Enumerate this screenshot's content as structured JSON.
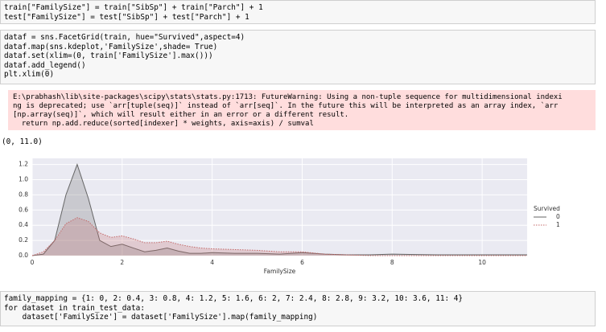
{
  "code_cells": [
    {
      "lines": [
        "train[\"FamilySize\"] = train[\"SibSp\"] + train[\"Parch\"] + 1",
        "test[\"FamilySize\"] = test[\"SibSp\"] + test[\"Parch\"] + 1"
      ]
    },
    {
      "lines": [
        "dataf = sns.FacetGrid(train, hue=\"Survived\",aspect=4)",
        "dataf.map(sns.kdeplot,'FamilySize',shade= True)",
        "dataf.set(xlim=(0, train['FamilySize'].max()))",
        "dataf.add_legend()",
        "plt.xlim(0)"
      ]
    },
    {
      "lines": [
        "family_mapping = {1: 0, 2: 0.4, 3: 0.8, 4: 1.2, 5: 1.6, 6: 2, 7: 2.4, 8: 2.8, 9: 3.2, 10: 3.6, 11: 4}",
        "for dataset in train_test_data:",
        "    dataset['FamilySize'] = dataset['FamilySize'].map(family_mapping)"
      ]
    }
  ],
  "warning_lines": [
    "E:\\prabhash\\lib\\site-packages\\scipy\\stats\\stats.py:1713: FutureWarning: Using a non-tuple sequence for multidimensional indexi",
    "ng is deprecated; use `arr[tuple(seq)]` instead of `arr[seq]`. In the future this will be interpreted as an array index, `arr",
    "[np.array(seq)]`, which will result either in an error or a different result.",
    "  return np.add.reduce(sorted[indexer] * weights, axis=axis) / sumval"
  ],
  "output_text": "(0, 11.0)",
  "chart_data": {
    "type": "line",
    "x_label": "FamilySize",
    "legend_title": "Survived",
    "legend": "right",
    "x": [
      0,
      0.25,
      0.5,
      0.75,
      1,
      1.25,
      1.5,
      1.75,
      2,
      2.25,
      2.5,
      2.75,
      3,
      3.25,
      3.5,
      3.75,
      4,
      4.5,
      5,
      5.5,
      6,
      6.5,
      7,
      7.5,
      8,
      9,
      10,
      11
    ],
    "series": [
      {
        "name": "0",
        "color": "#666666",
        "values": [
          0,
          0.02,
          0.2,
          0.8,
          1.2,
          0.75,
          0.2,
          0.12,
          0.15,
          0.1,
          0.05,
          0.07,
          0.1,
          0.06,
          0.03,
          0.03,
          0.04,
          0.03,
          0.03,
          0.02,
          0.04,
          0.02,
          0.01,
          0.01,
          0.02,
          0.01,
          0.01,
          0.01
        ]
      },
      {
        "name": "1",
        "color": "#c46a6a",
        "values": [
          0,
          0.05,
          0.2,
          0.42,
          0.5,
          0.45,
          0.3,
          0.24,
          0.26,
          0.22,
          0.17,
          0.17,
          0.19,
          0.15,
          0.12,
          0.1,
          0.09,
          0.08,
          0.07,
          0.05,
          0.05,
          0.02,
          0.01,
          0,
          0,
          0,
          0,
          0
        ]
      }
    ],
    "xlim": [
      0,
      11
    ],
    "xticks": [
      0,
      2,
      4,
      6,
      8,
      10
    ],
    "ylim": [
      0,
      1.28
    ],
    "yticks": [
      {
        "value": 0,
        "label": "0.0"
      },
      0.2,
      0.4,
      0.6,
      0.8,
      {
        "value": 1,
        "label": "1.0"
      },
      1.2
    ],
    "grid": true
  }
}
